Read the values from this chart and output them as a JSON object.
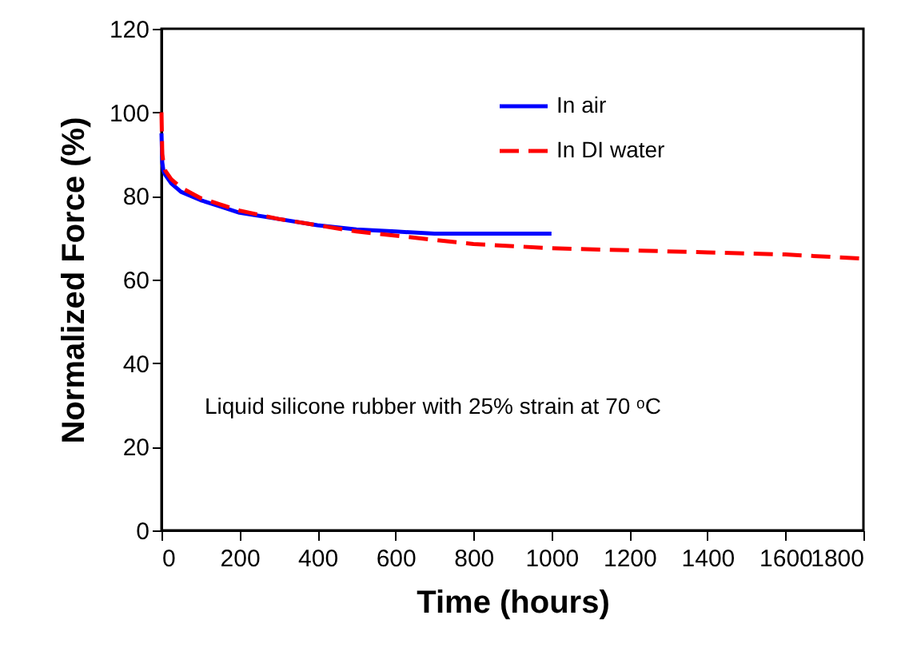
{
  "chart_data": {
    "type": "line",
    "xlabel": "Time (hours)",
    "ylabel": "Normalized Force (%)",
    "annotations": [
      "Liquid silicone rubber with 25% strain at 70 ᵒC"
    ],
    "xlim": [
      0,
      1800
    ],
    "xticks": [
      0,
      200,
      400,
      600,
      800,
      1000,
      1200,
      1400,
      1600,
      1800
    ],
    "ylim": [
      0,
      120
    ],
    "yticks": [
      0,
      20,
      40,
      60,
      80,
      100,
      120
    ],
    "grid": false,
    "legend": "top right",
    "marker": "none",
    "series": [
      {
        "name": "In air",
        "color": "#0000ff",
        "line_style": "solid",
        "x": [
          0,
          2,
          5,
          10,
          25,
          50,
          100,
          150,
          200,
          300,
          400,
          500,
          600,
          700,
          800,
          1000
        ],
        "values": [
          95,
          88,
          86,
          85,
          83,
          81,
          79,
          77.5,
          76,
          74.5,
          73,
          72,
          71.5,
          71,
          71,
          71
        ]
      },
      {
        "name": "In DI water",
        "color": "#ff0000",
        "line_style": "dashed",
        "x": [
          0,
          2,
          5,
          10,
          25,
          50,
          100,
          150,
          200,
          300,
          400,
          500,
          600,
          700,
          800,
          1000,
          1200,
          1400,
          1600,
          1800
        ],
        "values": [
          100,
          90,
          88,
          86,
          84,
          82,
          79.5,
          78,
          76.5,
          74.5,
          73,
          71.5,
          70.5,
          69.5,
          68.5,
          67.5,
          67,
          66.5,
          66,
          65
        ]
      }
    ]
  }
}
